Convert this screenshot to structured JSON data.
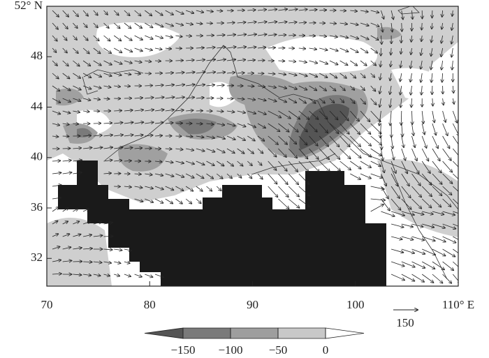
{
  "chart_data": {
    "type": "map",
    "xlim": [
      70,
      110
    ],
    "ylim": [
      29.8,
      52
    ],
    "xticks": [
      70,
      80,
      90,
      100,
      {
        "value": 110,
        "label": "110° E"
      }
    ],
    "yticks": [
      {
        "value": 52,
        "label": "52° N"
      },
      48,
      44,
      40,
      36,
      32
    ],
    "reference_vector": 150,
    "colorbar": {
      "ticks": [
        {
          "value": -150,
          "label": "−150"
        },
        {
          "value": -100,
          "label": "−100"
        },
        {
          "value": -50,
          "label": "−50"
        },
        0
      ],
      "colors": [
        "#555555",
        "#7a7a7a",
        "#9e9e9e",
        "#c8c8c8",
        "#ffffff"
      ]
    }
  }
}
